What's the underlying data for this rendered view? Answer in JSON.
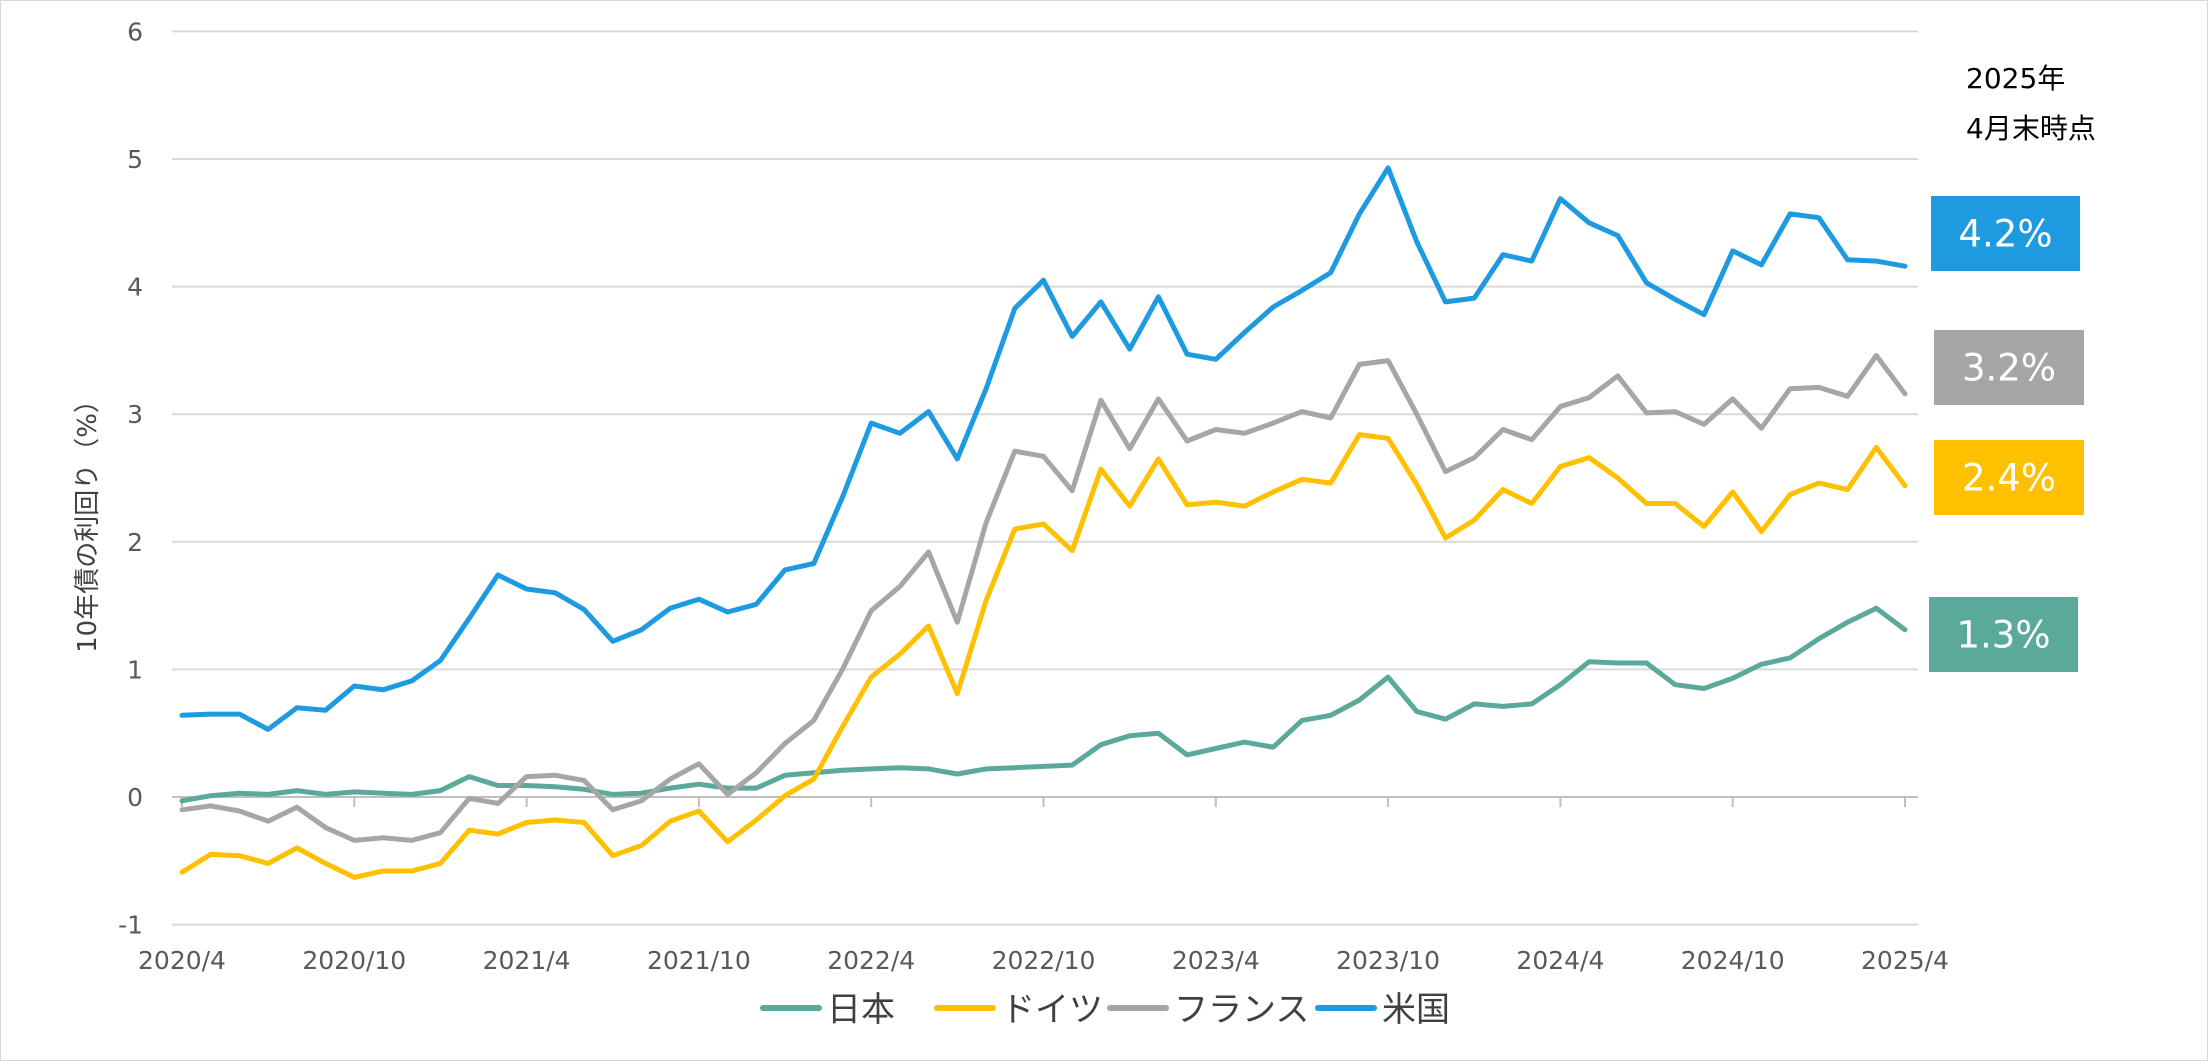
{
  "chart_data": {
    "type": "line",
    "ylabel": "10年債の利回り（%）",
    "xlabel": "",
    "ylim": [
      -1,
      6
    ],
    "yticks": [
      "-1",
      "0",
      "1",
      "2",
      "3",
      "4",
      "5",
      "6"
    ],
    "xtick_labels": [
      "2020/4",
      "2020/10",
      "2021/4",
      "2021/10",
      "2022/4",
      "2022/10",
      "2023/4",
      "2023/10",
      "2024/4",
      "2024/10",
      "2025/4"
    ],
    "annotation": [
      "2025年",
      "4月末時点"
    ],
    "grid": "horizontal",
    "legend_position": "bottom",
    "series": [
      {
        "name": "日本",
        "color": "#5BA99A",
        "end_label": "1.3%",
        "values": [
          -0.03,
          0.01,
          0.03,
          0.02,
          0.05,
          0.02,
          0.04,
          0.03,
          0.02,
          0.05,
          0.16,
          0.09,
          0.09,
          0.08,
          0.06,
          0.02,
          0.03,
          0.07,
          0.1,
          0.07,
          0.07,
          0.17,
          0.19,
          0.21,
          0.22,
          0.23,
          0.22,
          0.18,
          0.22,
          0.23,
          0.24,
          0.25,
          0.41,
          0.48,
          0.5,
          0.33,
          0.38,
          0.43,
          0.39,
          0.6,
          0.64,
          0.76,
          0.94,
          0.67,
          0.61,
          0.73,
          0.71,
          0.73,
          0.88,
          1.06,
          1.05,
          1.05,
          0.88,
          0.85,
          0.93,
          1.04,
          1.09,
          1.24,
          1.37,
          1.48,
          1.31
        ]
      },
      {
        "name": "ドイツ",
        "color": "#FFC000",
        "end_label": "2.4%",
        "values": [
          -0.59,
          -0.45,
          -0.46,
          -0.52,
          -0.4,
          -0.52,
          -0.63,
          -0.58,
          -0.58,
          -0.52,
          -0.26,
          -0.29,
          -0.2,
          -0.18,
          -0.2,
          -0.46,
          -0.38,
          -0.19,
          -0.11,
          -0.35,
          -0.18,
          0.01,
          0.14,
          0.55,
          0.94,
          1.12,
          1.34,
          0.81,
          1.54,
          2.1,
          2.14,
          1.93,
          2.57,
          2.28,
          2.65,
          2.29,
          2.31,
          2.28,
          2.39,
          2.49,
          2.46,
          2.84,
          2.81,
          2.45,
          2.03,
          2.17,
          2.41,
          2.3,
          2.59,
          2.66,
          2.5,
          2.3,
          2.3,
          2.12,
          2.39,
          2.08,
          2.37,
          2.46,
          2.41,
          2.74,
          2.44
        ]
      },
      {
        "name": "フランス",
        "color": "#A6A6A6",
        "end_label": "3.2%",
        "values": [
          -0.1,
          -0.07,
          -0.11,
          -0.19,
          -0.08,
          -0.24,
          -0.34,
          -0.32,
          -0.34,
          -0.28,
          -0.01,
          -0.05,
          0.16,
          0.17,
          0.13,
          -0.1,
          -0.03,
          0.14,
          0.26,
          0.02,
          0.19,
          0.42,
          0.6,
          1.0,
          1.46,
          1.65,
          1.92,
          1.37,
          2.15,
          2.71,
          2.67,
          2.4,
          3.11,
          2.73,
          3.12,
          2.79,
          2.88,
          2.85,
          2.93,
          3.02,
          2.97,
          3.39,
          3.42,
          3.0,
          2.55,
          2.66,
          2.88,
          2.8,
          3.06,
          3.13,
          3.3,
          3.01,
          3.02,
          2.92,
          3.12,
          2.89,
          3.2,
          3.21,
          3.14,
          3.46,
          3.16
        ]
      },
      {
        "name": "米国",
        "color": "#1E9BE0",
        "end_label": "4.2%",
        "values": [
          0.64,
          0.65,
          0.65,
          0.53,
          0.7,
          0.68,
          0.87,
          0.84,
          0.91,
          1.07,
          1.4,
          1.74,
          1.63,
          1.6,
          1.47,
          1.22,
          1.31,
          1.48,
          1.55,
          1.45,
          1.51,
          1.78,
          1.83,
          2.35,
          2.93,
          2.85,
          3.02,
          2.65,
          3.2,
          3.83,
          4.05,
          3.61,
          3.88,
          3.51,
          3.92,
          3.47,
          3.43,
          3.64,
          3.84,
          3.97,
          4.11,
          4.57,
          4.93,
          4.35,
          3.88,
          3.91,
          4.25,
          4.2,
          4.69,
          4.5,
          4.4,
          4.03,
          3.9,
          3.78,
          4.28,
          4.17,
          4.57,
          4.54,
          4.21,
          4.2,
          4.16
        ]
      }
    ]
  }
}
